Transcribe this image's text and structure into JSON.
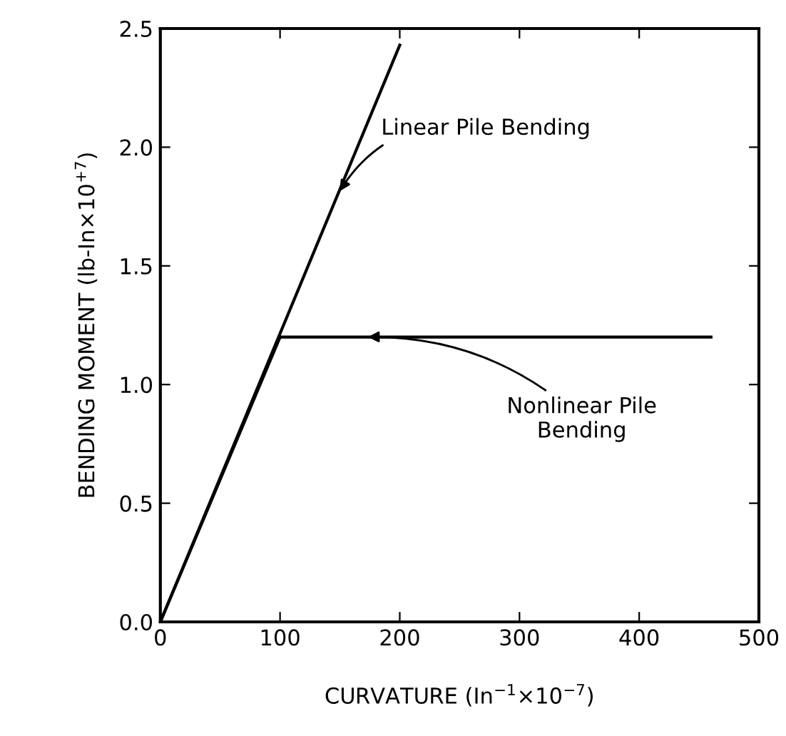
{
  "chart_data": {
    "type": "line",
    "xlabel": "CURVATURE (In$^{−1}$×10$^{−7}$)",
    "ylabel": "BENDING MOMENT (lb-In×10$^{+7}$)",
    "series": [
      {
        "color": "#000000",
        "x": [
          0,
          200
        ],
        "values": [
          0,
          2.43
        ]
      },
      {
        "color": "#000000",
        "x": [
          0,
          100,
          460
        ],
        "values": [
          0,
          1.2,
          1.2
        ]
      }
    ],
    "annotations": [
      {
        "text": "Linear Pile Bending",
        "x": 148,
        "y": 1.8
      },
      {
        "text": "Nonlinear Pile\nBending",
        "x": 170,
        "y": 1.2
      }
    ],
    "xlim": [
      0,
      500
    ],
    "xticks": [
      0,
      100,
      200,
      300,
      400,
      500
    ],
    "ylim": [
      0,
      2.5
    ],
    "yticks": [
      {
        "value": 0,
        "label": "0.0"
      },
      {
        "value": 0.5,
        "label": "0.5"
      },
      {
        "value": 1,
        "label": "1.0"
      },
      {
        "value": 1.5,
        "label": "1.5"
      },
      {
        "value": 2,
        "label": "2.0"
      },
      {
        "value": 2.5,
        "label": "2.5"
      }
    ],
    "grid": false,
    "legend": false,
    "marker": "none",
    "line_style": "solid"
  }
}
